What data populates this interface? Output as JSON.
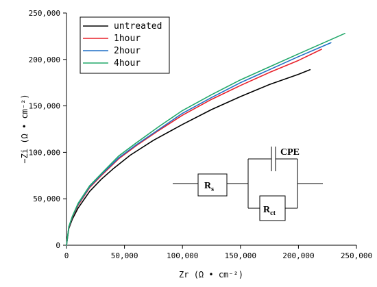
{
  "chart_data": {
    "type": "line",
    "xlabel": "Zr (Ω • cm⁻²)",
    "ylabel": "−Zi (Ω • cm⁻²)",
    "xlim": [
      0,
      250000
    ],
    "ylim": [
      0,
      250000
    ],
    "x_ticks": [
      "0",
      "50,000",
      "100,000",
      "150,000",
      "200,000",
      "250,000"
    ],
    "y_ticks": [
      "0",
      "50,000",
      "100,000",
      "150,000",
      "200,000",
      "250,000"
    ],
    "legend_position": "top-left",
    "grid": false,
    "series": [
      {
        "name": "untreated",
        "color": "#000000",
        "points": [
          [
            0,
            0
          ],
          [
            2000,
            18000
          ],
          [
            5000,
            28000
          ],
          [
            10000,
            40000
          ],
          [
            20000,
            58000
          ],
          [
            30000,
            71000
          ],
          [
            40000,
            82000
          ],
          [
            55000,
            97000
          ],
          [
            75000,
            113000
          ],
          [
            100000,
            130000
          ],
          [
            125000,
            146000
          ],
          [
            150000,
            160000
          ],
          [
            175000,
            173000
          ],
          [
            200000,
            184000
          ],
          [
            210000,
            189000
          ]
        ]
      },
      {
        "name": "1hour",
        "color": "#e8202a",
        "points": [
          [
            0,
            0
          ],
          [
            2000,
            19000
          ],
          [
            5000,
            30000
          ],
          [
            10000,
            43000
          ],
          [
            20000,
            62000
          ],
          [
            30000,
            75000
          ],
          [
            45000,
            93000
          ],
          [
            60000,
            107000
          ],
          [
            80000,
            124000
          ],
          [
            100000,
            140000
          ],
          [
            125000,
            157000
          ],
          [
            150000,
            172000
          ],
          [
            175000,
            186000
          ],
          [
            200000,
            199000
          ],
          [
            220000,
            211000
          ]
        ]
      },
      {
        "name": "2hour",
        "color": "#1f6fc5",
        "points": [
          [
            0,
            0
          ],
          [
            2000,
            19500
          ],
          [
            5000,
            30500
          ],
          [
            10000,
            44000
          ],
          [
            20000,
            63000
          ],
          [
            30000,
            76000
          ],
          [
            45000,
            94000
          ],
          [
            60000,
            108000
          ],
          [
            80000,
            125000
          ],
          [
            100000,
            142000
          ],
          [
            125000,
            159000
          ],
          [
            150000,
            175000
          ],
          [
            175000,
            189000
          ],
          [
            200000,
            203000
          ],
          [
            228000,
            218000
          ]
        ]
      },
      {
        "name": "4hour",
        "color": "#22a86a",
        "points": [
          [
            0,
            0
          ],
          [
            2000,
            20000
          ],
          [
            5000,
            31000
          ],
          [
            10000,
            45000
          ],
          [
            20000,
            64000
          ],
          [
            30000,
            77000
          ],
          [
            45000,
            96000
          ],
          [
            60000,
            110000
          ],
          [
            80000,
            128000
          ],
          [
            100000,
            145000
          ],
          [
            125000,
            162000
          ],
          [
            150000,
            178000
          ],
          [
            175000,
            192000
          ],
          [
            200000,
            206000
          ],
          [
            240000,
            228000
          ]
        ]
      }
    ]
  },
  "circuit": {
    "rs_label": "R",
    "rs_sub": "s",
    "cpe_label": "CPE",
    "rct_label": "R",
    "rct_sub": "ct"
  }
}
